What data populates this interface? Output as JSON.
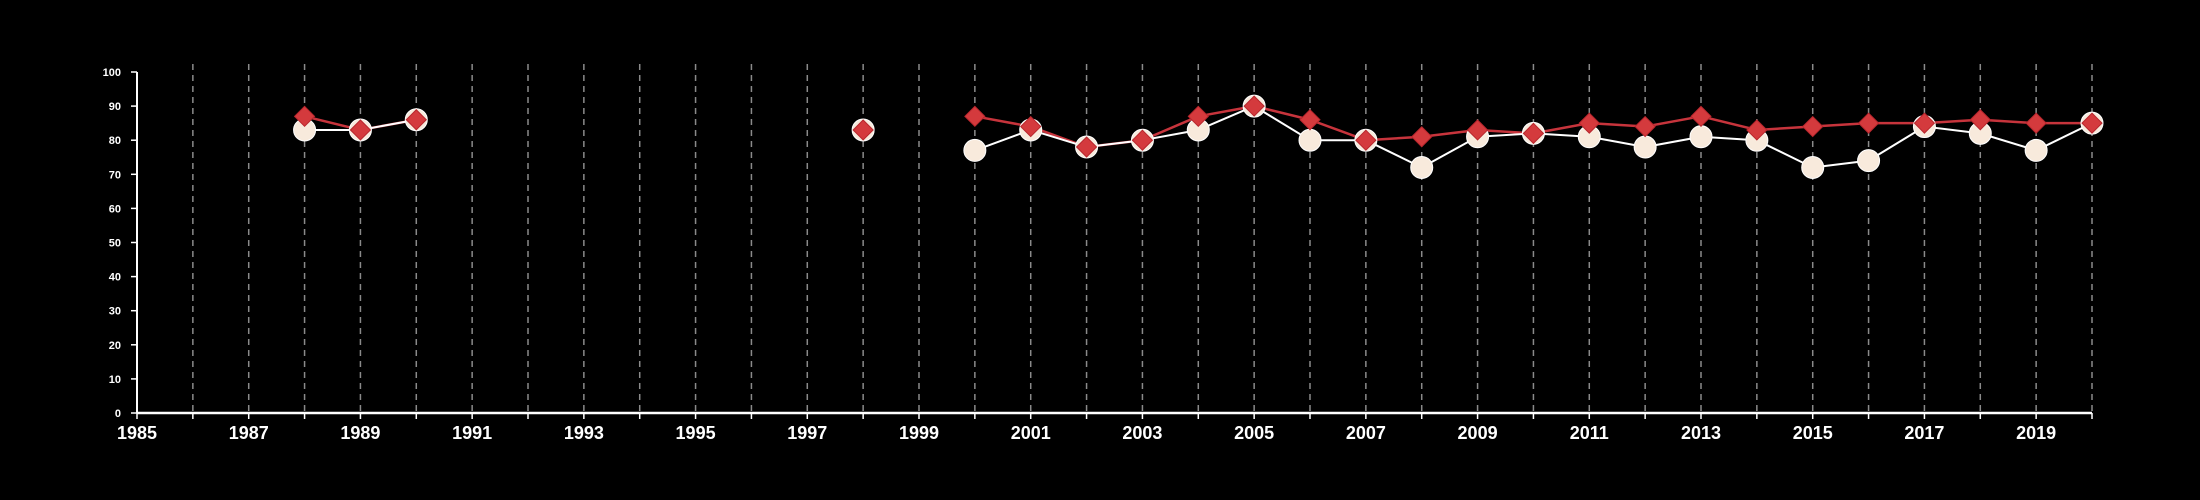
{
  "chart_data": {
    "type": "line",
    "title": "",
    "xlabel": "",
    "ylabel": "",
    "x_range": [
      1985,
      2020
    ],
    "ylim": [
      0,
      100
    ],
    "x_ticks": [
      1985,
      1987,
      1989,
      1991,
      1993,
      1995,
      1997,
      1999,
      2001,
      2003,
      2005,
      2007,
      2009,
      2011,
      2013,
      2015,
      2017,
      2019
    ],
    "x_tick_labels": [
      "1985",
      "1987",
      "1989",
      "1991",
      "1993",
      "1995",
      "1997",
      "1999",
      "2001",
      "2003",
      "2005",
      "2007",
      "2009",
      "2011",
      "2013",
      "2015",
      "2017",
      "2019"
    ],
    "y_ticks": [
      0,
      10,
      20,
      30,
      40,
      50,
      60,
      70,
      80,
      90,
      100
    ],
    "y_tick_labels": [
      "0",
      "10",
      "20",
      "30",
      "40",
      "50",
      "60",
      "70",
      "80",
      "90",
      "100"
    ],
    "vertical_grid": true,
    "grid_years": [
      1986,
      1987,
      1988,
      1989,
      1990,
      1991,
      1992,
      1993,
      1994,
      1995,
      1996,
      1997,
      1998,
      1999,
      2000,
      2001,
      2002,
      2003,
      2004,
      2005,
      2006,
      2007,
      2008,
      2009,
      2010,
      2011,
      2012,
      2013,
      2014,
      2015,
      2016,
      2017,
      2018,
      2019,
      2020
    ],
    "legend": "none",
    "colors": {
      "background": "#000000",
      "axis": "#ffffff",
      "grid": "#8a8a8a",
      "circle_series": "#f8eadc",
      "circle_line": "#ffffff",
      "diamond_series": "#d43a3d",
      "diamond_line": "#c7343c"
    },
    "series": [
      {
        "marker": "circle",
        "x": [
          1988,
          1989,
          1990,
          1998,
          2000,
          2001,
          2002,
          2003,
          2004,
          2005,
          2006,
          2007,
          2008,
          2009,
          2010,
          2011,
          2012,
          2013,
          2014,
          2015,
          2016,
          2017,
          2018,
          2019,
          2020
        ],
        "values": [
          83,
          83,
          86,
          83,
          77,
          83,
          78,
          80,
          83,
          90,
          80,
          80,
          72,
          81,
          82,
          81,
          78,
          81,
          80,
          72,
          74,
          84,
          82,
          77,
          85
        ]
      },
      {
        "marker": "diamond",
        "x": [
          1988,
          1989,
          1990,
          1998,
          2000,
          2001,
          2002,
          2003,
          2004,
          2005,
          2006,
          2007,
          2008,
          2009,
          2010,
          2011,
          2012,
          2013,
          2014,
          2015,
          2016,
          2017,
          2018,
          2019,
          2020
        ],
        "values": [
          87,
          83,
          86,
          83,
          87,
          84,
          78,
          80,
          87,
          90,
          86,
          80,
          81,
          83,
          82,
          85,
          84,
          87,
          83,
          84,
          85,
          85,
          86,
          85,
          85
        ]
      }
    ]
  }
}
